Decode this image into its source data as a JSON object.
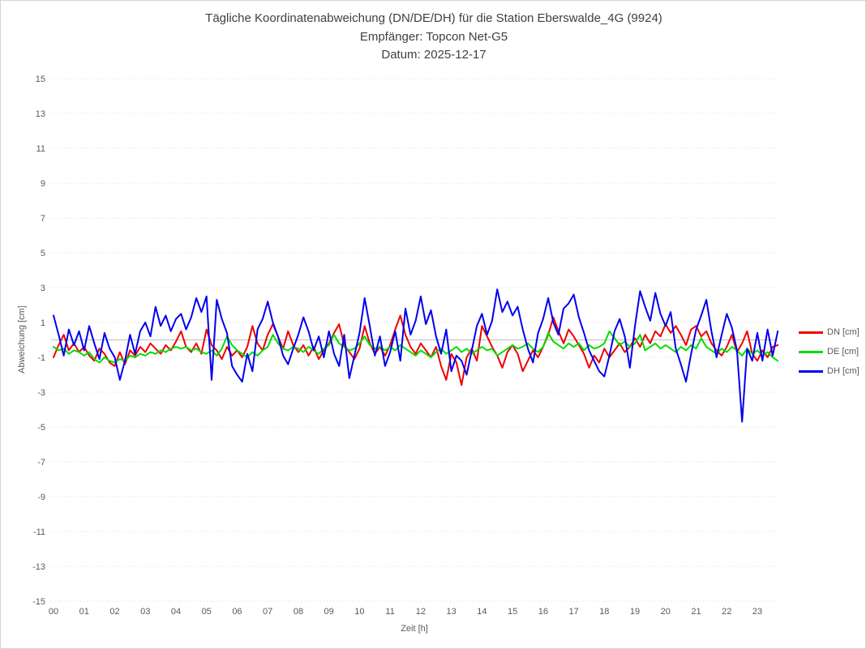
{
  "window": {
    "background": "#ffffff",
    "border_color": "#d4d4d4"
  },
  "title": {
    "line1": "Tägliche Koordinatenabweichung (DN/DE/DH) für die Station Eberswalde_4G (9924)",
    "line2": "Empfänger: Topcon Net-G5",
    "line3": "Datum: 2025-12-17"
  },
  "chart_data": {
    "type": "line",
    "title": "Tägliche Koordinatenabweichung (DN/DE/DH) für die Station Eberswalde_4G (9924)",
    "subtitle": [
      "Empfänger: Topcon Net-G5",
      "Datum: 2025-12-17"
    ],
    "xlabel": "Zeit [h]",
    "ylabel": "Abweichung [cm]",
    "xlim": [
      0,
      24
    ],
    "ylim": [
      -15,
      15
    ],
    "grid": "horizontal dotted",
    "grid_color": "#d9d9d9",
    "zero_line_color": "#bfbfbf",
    "legend_position": "right",
    "x_ticks": [
      "00",
      "01",
      "02",
      "03",
      "04",
      "05",
      "06",
      "07",
      "08",
      "09",
      "10",
      "11",
      "12",
      "13",
      "14",
      "15",
      "16",
      "17",
      "18",
      "19",
      "20",
      "21",
      "22",
      "23"
    ],
    "y_ticks": [
      15,
      13,
      11,
      9,
      7,
      5,
      3,
      1,
      -1,
      -3,
      -5,
      -7,
      -9,
      -11,
      -13,
      -15
    ],
    "x_start_hour": 0,
    "x_step_hours": 0.166667,
    "series": [
      {
        "name": "DN [cm]",
        "color": "#ee0000",
        "values": [
          -1.0,
          -0.3,
          0.3,
          -0.6,
          -0.2,
          -0.7,
          -0.4,
          -0.9,
          -1.2,
          -0.5,
          -0.8,
          -1.3,
          -1.5,
          -0.7,
          -1.4,
          -0.6,
          -0.9,
          -0.4,
          -0.7,
          -0.2,
          -0.5,
          -0.8,
          -0.3,
          -0.6,
          -0.1,
          0.5,
          -0.4,
          -0.7,
          -0.2,
          -0.8,
          0.6,
          -0.3,
          -0.6,
          -1.1,
          -0.4,
          -0.9,
          -0.6,
          -1.0,
          -0.4,
          0.8,
          -0.2,
          -0.6,
          0.3,
          0.9,
          0.2,
          -0.5,
          0.5,
          -0.3,
          -0.7,
          -0.3,
          -0.9,
          -0.4,
          -1.1,
          -0.6,
          -0.2,
          0.4,
          0.9,
          -0.3,
          -0.7,
          -1.1,
          -0.5,
          0.8,
          -0.2,
          -0.8,
          -0.4,
          -0.9,
          -0.3,
          0.6,
          1.4,
          0.3,
          -0.4,
          -0.8,
          -0.2,
          -0.6,
          -1.0,
          -0.4,
          -1.5,
          -2.3,
          -0.8,
          -1.3,
          -2.6,
          -1.0,
          -0.5,
          -1.2,
          0.8,
          0.2,
          -0.4,
          -0.9,
          -1.6,
          -0.7,
          -0.3,
          -0.8,
          -1.8,
          -1.2,
          -0.6,
          -1.0,
          -0.4,
          0.3,
          1.3,
          0.5,
          -0.2,
          0.6,
          0.2,
          -0.3,
          -0.8,
          -1.6,
          -0.9,
          -1.3,
          -0.5,
          -1.0,
          -0.6,
          -0.2,
          -0.7,
          -0.4,
          0.1,
          -0.4,
          0.3,
          -0.2,
          0.5,
          0.2,
          0.9,
          0.4,
          0.8,
          0.3,
          -0.3,
          0.6,
          0.8,
          0.2,
          0.5,
          -0.2,
          -0.6,
          -0.9,
          -0.4,
          0.3,
          -0.7,
          -0.2,
          0.5,
          -0.8,
          -1.2,
          -0.6,
          -1.0,
          -0.4,
          -0.3
        ]
      },
      {
        "name": "DE [cm]",
        "color": "#00dd00",
        "values": [
          -0.4,
          -0.6,
          -0.5,
          -0.8,
          -0.6,
          -0.7,
          -0.9,
          -0.7,
          -1.1,
          -1.3,
          -1.0,
          -1.2,
          -1.3,
          -1.1,
          -1.2,
          -0.9,
          -1.0,
          -0.8,
          -0.9,
          -0.7,
          -0.8,
          -0.6,
          -0.7,
          -0.5,
          -0.4,
          -0.5,
          -0.4,
          -0.6,
          -0.5,
          -0.7,
          -0.8,
          -0.6,
          -0.9,
          -0.5,
          0.2,
          -0.3,
          -0.6,
          -0.8,
          -1.0,
          -0.7,
          -0.9,
          -0.6,
          -0.4,
          0.3,
          -0.2,
          -0.5,
          -0.6,
          -0.4,
          -0.5,
          -0.7,
          -0.4,
          -0.6,
          -0.8,
          -0.5,
          -0.3,
          0.3,
          -0.2,
          -0.4,
          -0.6,
          -0.5,
          -0.2,
          0.2,
          -0.3,
          -0.5,
          -0.4,
          -0.6,
          -0.4,
          -0.6,
          -0.3,
          -0.5,
          -0.7,
          -0.9,
          -0.6,
          -0.8,
          -1.0,
          -0.7,
          -0.5,
          -0.8,
          -0.6,
          -0.4,
          -0.7,
          -0.5,
          -0.8,
          -0.6,
          -0.4,
          -0.6,
          -0.5,
          -0.9,
          -0.7,
          -0.5,
          -0.3,
          -0.5,
          -0.4,
          -0.2,
          -0.5,
          -0.7,
          -0.4,
          0.4,
          -0.1,
          -0.3,
          -0.5,
          -0.2,
          -0.4,
          -0.2,
          -0.6,
          -0.3,
          -0.5,
          -0.4,
          -0.2,
          0.5,
          0.1,
          -0.3,
          -0.1,
          -0.4,
          -0.2,
          0.3,
          -0.6,
          -0.4,
          -0.2,
          -0.5,
          -0.3,
          -0.5,
          -0.7,
          -0.4,
          -0.6,
          -0.3,
          -0.5,
          0.1,
          -0.4,
          -0.6,
          -0.8,
          -0.5,
          -0.7,
          -0.4,
          -0.6,
          -0.9,
          -0.5,
          -0.8,
          -0.6,
          -0.9,
          -0.7,
          -1.0,
          -1.2
        ]
      },
      {
        "name": "DH [cm]",
        "color": "#0000ee",
        "values": [
          1.4,
          0.3,
          -0.9,
          0.6,
          -0.3,
          0.5,
          -0.6,
          0.8,
          -0.2,
          -1.1,
          0.4,
          -0.5,
          -1.0,
          -2.3,
          -1.2,
          0.3,
          -0.8,
          0.5,
          1.0,
          0.2,
          1.9,
          0.8,
          1.4,
          0.5,
          1.2,
          1.5,
          0.6,
          1.3,
          2.4,
          1.6,
          2.5,
          -2.3,
          2.3,
          1.2,
          0.4,
          -1.5,
          -2.0,
          -2.4,
          -0.8,
          -1.8,
          0.6,
          1.2,
          2.2,
          1.0,
          0.2,
          -0.9,
          -1.4,
          -0.5,
          0.3,
          1.3,
          0.5,
          -0.6,
          0.2,
          -1.0,
          0.5,
          -0.8,
          -1.5,
          0.3,
          -2.2,
          -0.9,
          0.4,
          2.4,
          0.8,
          -0.9,
          0.2,
          -1.5,
          -0.7,
          0.5,
          -1.2,
          1.8,
          0.3,
          1.1,
          2.5,
          0.9,
          1.7,
          0.2,
          -0.8,
          0.6,
          -1.8,
          -0.9,
          -1.2,
          -2.0,
          -0.6,
          0.8,
          1.5,
          0.3,
          1.1,
          2.9,
          1.6,
          2.2,
          1.4,
          1.9,
          0.6,
          -0.5,
          -1.3,
          0.4,
          1.2,
          2.4,
          1.0,
          0.3,
          1.8,
          2.1,
          2.6,
          1.3,
          0.4,
          -0.6,
          -1.2,
          -1.8,
          -2.1,
          -0.9,
          0.5,
          1.2,
          0.2,
          -1.6,
          0.8,
          2.8,
          1.9,
          1.1,
          2.7,
          1.5,
          0.8,
          1.6,
          -0.5,
          -1.4,
          -2.4,
          -0.8,
          0.6,
          1.4,
          2.3,
          0.5,
          -1.0,
          0.3,
          1.5,
          0.7,
          -0.6,
          -4.7,
          -0.5,
          -1.2,
          0.4,
          -1.2,
          0.6,
          -0.9,
          0.5
        ]
      }
    ]
  },
  "layout_text": {
    "note": ""
  }
}
